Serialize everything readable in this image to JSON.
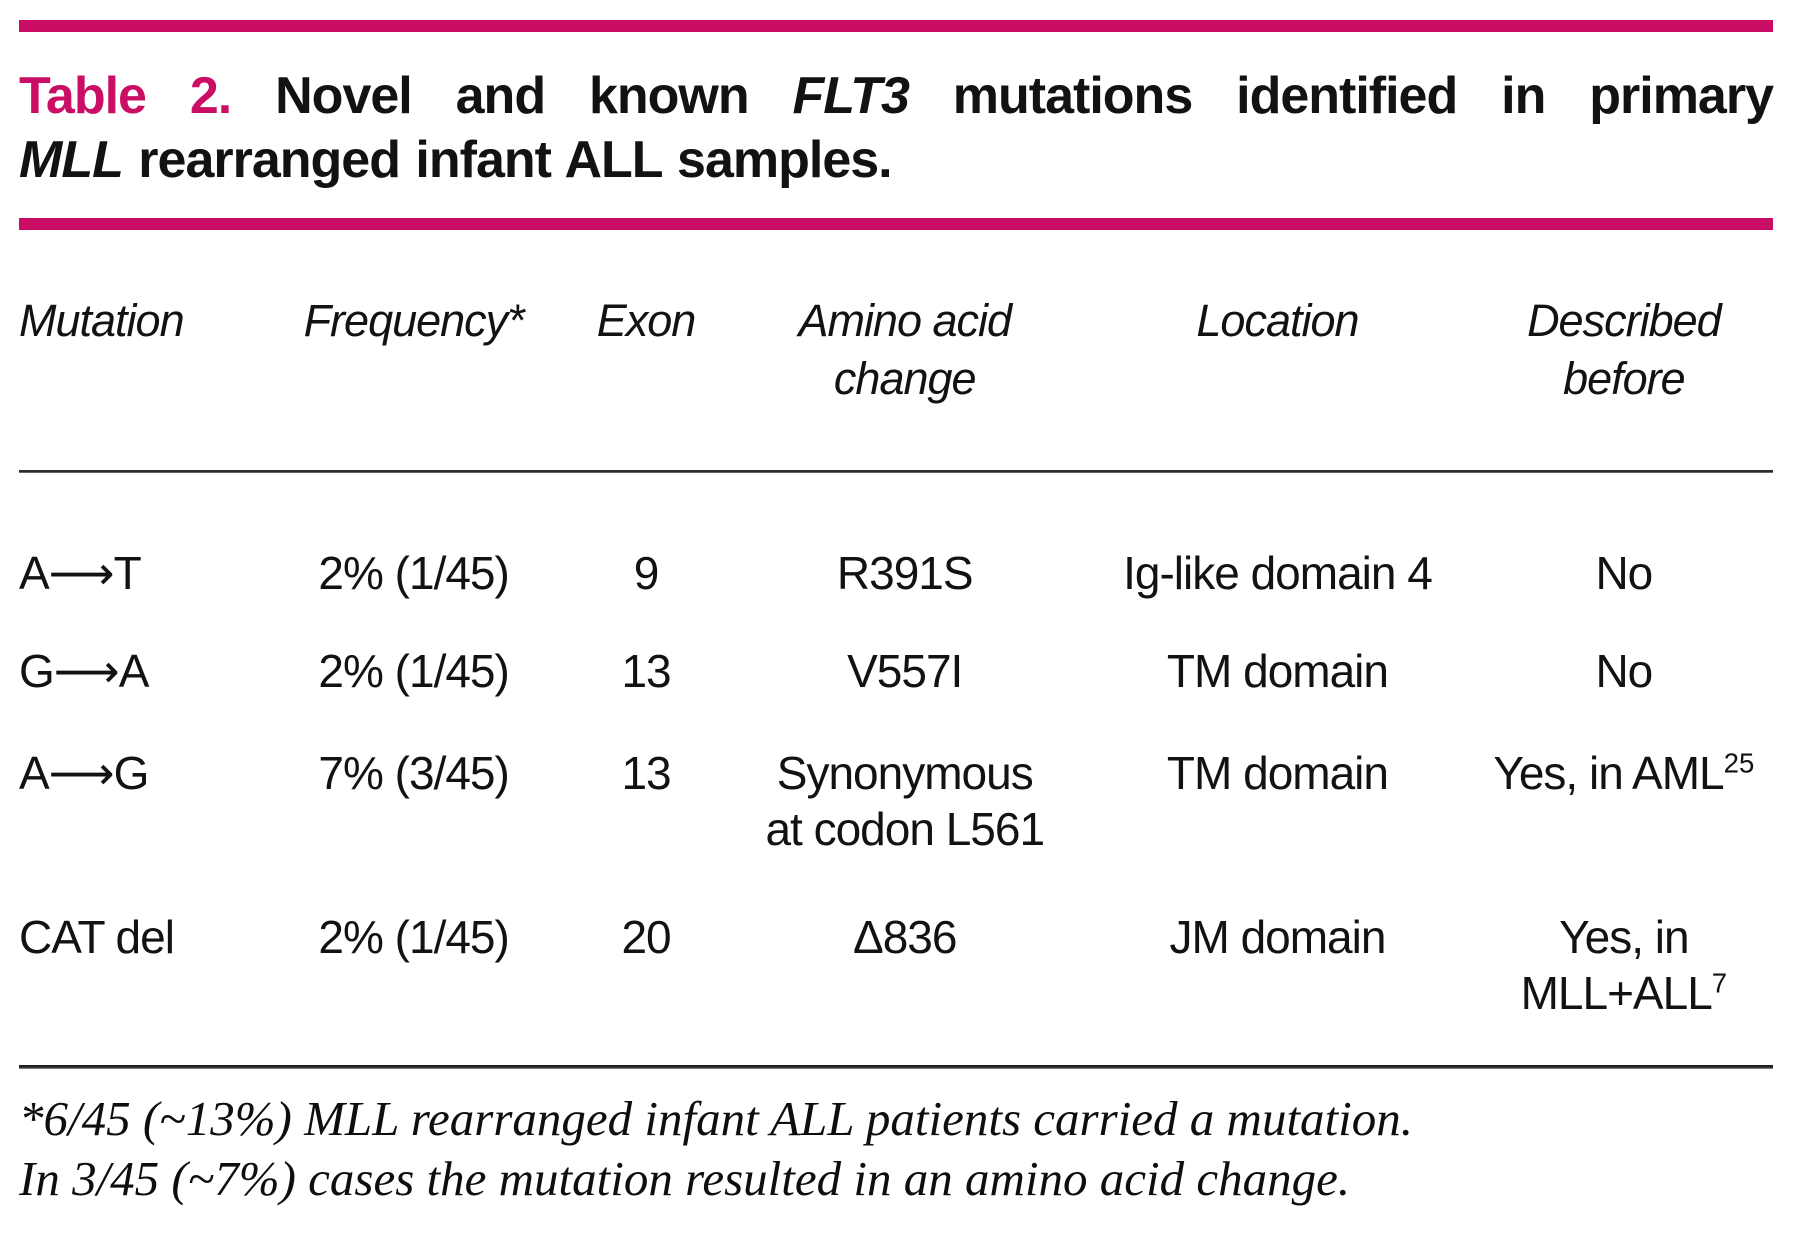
{
  "colors": {
    "accent": "#CA0E66",
    "rule_dark": "#2e2e2e",
    "text": "#121212"
  },
  "title": {
    "label": "Table 2.",
    "part1": " Novel and known ",
    "gene1": "FLT3",
    "part2": " mutations identified in primary",
    "gene2": "MLL",
    "part3": " rearranged infant ALL samples."
  },
  "table": {
    "headers": {
      "mutation": "Mutation",
      "frequency": "Frequency*",
      "exon": "Exon",
      "amino_line1": "Amino acid",
      "amino_line2": "change",
      "location": "Location",
      "described_line1": "Described",
      "described_line2": "before"
    },
    "rows": [
      {
        "mutation": "A⟶T",
        "frequency": "2% (1/45)",
        "exon": "9",
        "amino_line1": "R391S",
        "amino_line2": "",
        "location": "Ig-like domain 4",
        "described_line1": "No",
        "described_sup1": "",
        "described_line2": "",
        "described_sup2": ""
      },
      {
        "mutation": "G⟶A",
        "frequency": "2% (1/45)",
        "exon": "13",
        "amino_line1": "V557I",
        "amino_line2": "",
        "location": "TM domain",
        "described_line1": "No",
        "described_sup1": "",
        "described_line2": "",
        "described_sup2": ""
      },
      {
        "mutation": "A⟶G",
        "frequency": "7% (3/45)",
        "exon": "13",
        "amino_line1": "Synonymous",
        "amino_line2": "at codon L561",
        "location": "TM domain",
        "described_line1": "Yes, in AML",
        "described_sup1": "25",
        "described_line2": "",
        "described_sup2": ""
      },
      {
        "mutation": "CAT del",
        "frequency": "2% (1/45)",
        "exon": "20",
        "amino_line1": "Δ836",
        "amino_line2": "",
        "location": "JM domain",
        "described_line1": "Yes, in",
        "described_sup1": "",
        "described_line2": "MLL+ALL",
        "described_sup2": "7"
      }
    ]
  },
  "footnote": {
    "line1": "*6/45 (~13%) MLL rearranged infant ALL patients carried a mutation.",
    "line2": "In 3/45 (~7%) cases the mutation resulted in an  amino acid change."
  }
}
